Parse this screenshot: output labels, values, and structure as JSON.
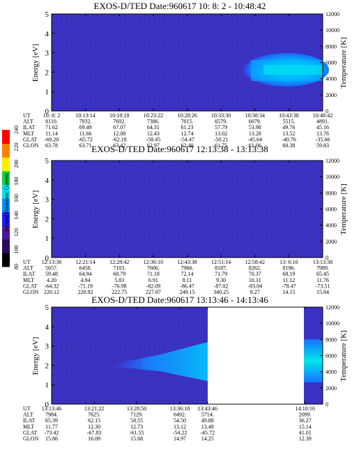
{
  "colorbar": {
    "label": "Second Harmonic Current",
    "ticks": [
      "80",
      "100",
      "120",
      "140",
      "160",
      "180",
      "200",
      "220",
      "240"
    ],
    "colors": [
      "#000000",
      "#2a0a5c",
      "#4a1a9a",
      "#1c1cff",
      "#0090ff",
      "#00e0f0",
      "#10d040",
      "#f8f000",
      "#ff8000",
      "#ff0000"
    ]
  },
  "chart_data": [
    {
      "type": "heatmap",
      "title": "EXOS-D/TED   Date:960617  10: 8: 2 - 10:48:42",
      "ylabel": "Energy [eV]",
      "y2label": "Temperature [K]",
      "ylim": [
        0,
        5
      ],
      "y2lim": [
        0,
        12000
      ],
      "yticks": [
        "0",
        "1",
        "2",
        "3",
        "4",
        "5"
      ],
      "y2ticks": [
        "0",
        "2000",
        "4000",
        "6000",
        "8000",
        "10000",
        "12000"
      ],
      "ephemeris": {
        "labels": [
          "UT",
          "ALT",
          "ILAT",
          "MLT",
          "GLAT",
          "GLON"
        ],
        "columns": [
          [
            "10: 8: 2",
            "8110.",
            "71.62",
            "11.14",
            "-69.20",
            "63.78"
          ],
          [
            "10:13:14",
            "7932.",
            "69.49",
            "11.66",
            "-65.72",
            "63.71"
          ],
          [
            "10:18:18",
            "7692.",
            "67.07",
            "12.08",
            "-62.18",
            "63.42"
          ],
          [
            "10:23:22",
            "7386.",
            "64.31",
            "12.43",
            "-58.45",
            "62.97"
          ],
          [
            "10:28:26",
            "7015.",
            "61.23",
            "12.74",
            "-54.47",
            "62.40"
          ],
          [
            "10:33:30",
            "6579.",
            "57.79",
            "13.02",
            "-50.21",
            "61.75"
          ],
          [
            "10:38:34",
            "6079.",
            "53.98",
            "13.28",
            "-45.64",
            "61.06"
          ],
          [
            "10:43:38",
            "5515.",
            "49.76",
            "13.52",
            "-40.76",
            "60.38"
          ],
          [
            "10:48:42",
            "4891.",
            "45.16",
            "13.76",
            "-35.66",
            "59.83"
          ]
        ]
      }
    },
    {
      "type": "heatmap",
      "title": "EXOS-D/TED   Date:960617  12:13:38 - 13:13:38",
      "ylabel": "Energy [eV]",
      "y2label": "Temperature [K]",
      "ylim": [
        0,
        5
      ],
      "y2lim": [
        0,
        12000
      ],
      "yticks": [
        "0",
        "1",
        "2",
        "3",
        "4",
        "5"
      ],
      "y2ticks": [
        "0",
        "2000",
        "4000",
        "6000",
        "8000",
        "10000",
        "12000"
      ],
      "ephemeris": {
        "labels": [
          "UT",
          "ALT",
          "ILAT",
          "MLT",
          "GLAT",
          "GLON"
        ],
        "columns": [
          [
            "12:13:38",
            "5657.",
            "59.48",
            "4.20",
            "-64.32",
            "220.12"
          ],
          [
            "12:21:14",
            "6458.",
            "64.94",
            "4.94",
            "-71.19",
            "220.92"
          ],
          [
            "12:28:42",
            "7103.",
            "68.79",
            "5.83",
            "-76.98",
            "222.75"
          ],
          [
            "12:36:10",
            "7606.",
            "71.18",
            "6.91",
            "-82.09",
            "227.87"
          ],
          [
            "12:43:38",
            "7966.",
            "72.14",
            "8.11",
            "-86.47",
            "249.15"
          ],
          [
            "12:51:14",
            "8187.",
            "71.79",
            "9.30",
            "-87.02",
            "340.25"
          ],
          [
            "12:58:42",
            "8262.",
            "70.37",
            "10.31",
            "-83.04",
            "8.27"
          ],
          [
            "13: 6:10",
            "8196.",
            "68.19",
            "11.12",
            "-78.47",
            "14.15"
          ],
          [
            "13:13:38",
            "7989.",
            "65.45",
            "11.76",
            "-73.51",
            "15.84"
          ]
        ]
      }
    },
    {
      "type": "heatmap",
      "title": "EXOS-D/TED   Date:960617  13:13:46 - 14:13:46",
      "ylabel": "Energy [eV]",
      "y2label": "Temperature [K]",
      "ylim": [
        0,
        5
      ],
      "y2lim": [
        0,
        12000
      ],
      "yticks": [
        "0",
        "1",
        "2",
        "3",
        "4",
        "5"
      ],
      "y2ticks": [
        "0",
        "2000",
        "4000",
        "6000",
        "8000",
        "10000",
        "12000"
      ],
      "ephemeris": {
        "labels": [
          "UT",
          "ALT",
          "ILAT",
          "MLT",
          "GLAT",
          "GLON"
        ],
        "columns": [
          [
            "13:13:46",
            "7984.",
            "65.39",
            "11.77",
            "-73.42",
            "15.86"
          ],
          [
            "13:21:22",
            "7625.",
            "62.15",
            "12.30",
            "-67.83",
            "16.09"
          ],
          [
            "13:28:50",
            "7129.",
            "58.55",
            "12.73",
            "-61.55",
            "15.68"
          ],
          [
            "13:36:18",
            "6492.",
            "54.50",
            "13.12",
            "-54.22",
            "14.97"
          ],
          [
            "13:43:46",
            "5714.",
            "49.88",
            "13.49",
            "-45.72",
            "14.25"
          ],
          [
            "14:10:10",
            "2099.",
            "36.27",
            "15.14",
            "41.01",
            "12.39"
          ]
        ]
      }
    }
  ]
}
